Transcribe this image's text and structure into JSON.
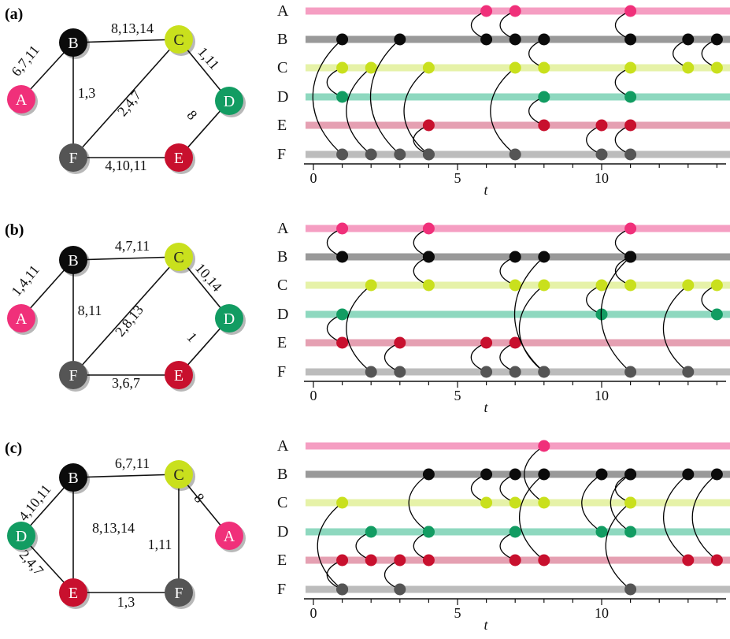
{
  "colors": {
    "A": "#f0307a",
    "B": "#0b0b0b",
    "C": "#c9e01d",
    "D": "#129c62",
    "E": "#c8102e",
    "F": "#555555"
  },
  "line_colors": {
    "A": "#f59ec2",
    "B": "#999999",
    "C": "#e6f2a8",
    "D": "#8ed8bf",
    "E": "#e5a0b2",
    "F": "#bcbcbc"
  },
  "row_labels": [
    "A",
    "B",
    "C",
    "D",
    "E",
    "F"
  ],
  "axis": {
    "title": "t",
    "ticks": [
      "0",
      "5",
      "10"
    ]
  },
  "panels": [
    {
      "label": "(a)",
      "graph": {
        "nodes": [
          "A",
          "B",
          "C",
          "D",
          "E",
          "F"
        ],
        "edges": [
          {
            "from": "A",
            "to": "B",
            "label": "6,7,11"
          },
          {
            "from": "B",
            "to": "C",
            "label": "8,13,14"
          },
          {
            "from": "B",
            "to": "F",
            "label": "1,3"
          },
          {
            "from": "C",
            "to": "F",
            "label": "2,4,7"
          },
          {
            "from": "C",
            "to": "D",
            "label": "1,11"
          },
          {
            "from": "D",
            "to": "E",
            "label": "8"
          },
          {
            "from": "F",
            "to": "E",
            "label": "4,10,11"
          }
        ]
      },
      "events": [
        {
          "t": 1,
          "u": "B",
          "v": "F"
        },
        {
          "t": 1,
          "u": "C",
          "v": "D"
        },
        {
          "t": 2,
          "u": "C",
          "v": "F"
        },
        {
          "t": 3,
          "u": "B",
          "v": "F"
        },
        {
          "t": 4,
          "u": "C",
          "v": "F"
        },
        {
          "t": 4,
          "u": "E",
          "v": "F"
        },
        {
          "t": 6,
          "u": "A",
          "v": "B"
        },
        {
          "t": 7,
          "u": "A",
          "v": "B"
        },
        {
          "t": 7,
          "u": "C",
          "v": "F"
        },
        {
          "t": 8,
          "u": "B",
          "v": "C"
        },
        {
          "t": 8,
          "u": "D",
          "v": "E"
        },
        {
          "t": 10,
          "u": "E",
          "v": "F"
        },
        {
          "t": 11,
          "u": "A",
          "v": "B"
        },
        {
          "t": 11,
          "u": "C",
          "v": "D"
        },
        {
          "t": 11,
          "u": "E",
          "v": "F"
        },
        {
          "t": 13,
          "u": "B",
          "v": "C"
        },
        {
          "t": 14,
          "u": "B",
          "v": "C"
        }
      ]
    },
    {
      "label": "(b)",
      "graph": {
        "nodes": [
          "A",
          "B",
          "C",
          "D",
          "E",
          "F"
        ],
        "edges": [
          {
            "from": "A",
            "to": "B",
            "label": "1,4,11"
          },
          {
            "from": "B",
            "to": "C",
            "label": "4,7,11"
          },
          {
            "from": "B",
            "to": "F",
            "label": "8,11"
          },
          {
            "from": "C",
            "to": "F",
            "label": "2,8,13"
          },
          {
            "from": "C",
            "to": "D",
            "label": "10,14"
          },
          {
            "from": "D",
            "to": "E",
            "label": "1"
          },
          {
            "from": "F",
            "to": "E",
            "label": "3,6,7"
          }
        ]
      },
      "events": [
        {
          "t": 1,
          "u": "A",
          "v": "B"
        },
        {
          "t": 1,
          "u": "D",
          "v": "E"
        },
        {
          "t": 2,
          "u": "C",
          "v": "F"
        },
        {
          "t": 3,
          "u": "E",
          "v": "F"
        },
        {
          "t": 4,
          "u": "A",
          "v": "B"
        },
        {
          "t": 4,
          "u": "B",
          "v": "C"
        },
        {
          "t": 6,
          "u": "E",
          "v": "F"
        },
        {
          "t": 7,
          "u": "B",
          "v": "C"
        },
        {
          "t": 7,
          "u": "E",
          "v": "F"
        },
        {
          "t": 8,
          "u": "B",
          "v": "F"
        },
        {
          "t": 8,
          "u": "C",
          "v": "F"
        },
        {
          "t": 10,
          "u": "C",
          "v": "D"
        },
        {
          "t": 11,
          "u": "A",
          "v": "B"
        },
        {
          "t": 11,
          "u": "B",
          "v": "C"
        },
        {
          "t": 11,
          "u": "B",
          "v": "F"
        },
        {
          "t": 13,
          "u": "C",
          "v": "F"
        },
        {
          "t": 14,
          "u": "C",
          "v": "D"
        }
      ]
    },
    {
      "label": "(c)",
      "graph": {
        "nodes": [
          "A",
          "B",
          "C",
          "D",
          "E",
          "F"
        ],
        "edges": [
          {
            "from": "D",
            "to": "B",
            "label": "4,10,11"
          },
          {
            "from": "B",
            "to": "C",
            "label": "6,7,11"
          },
          {
            "from": "B",
            "to": "E",
            "label": "8,13,14"
          },
          {
            "from": "D",
            "to": "E",
            "label": "2,4,7"
          },
          {
            "from": "C",
            "to": "A",
            "label": "8"
          },
          {
            "from": "C",
            "to": "F",
            "label": "1,11"
          },
          {
            "from": "E",
            "to": "F",
            "label": "1,3"
          }
        ]
      },
      "events": [
        {
          "t": 1,
          "u": "C",
          "v": "F"
        },
        {
          "t": 1,
          "u": "E",
          "v": "F"
        },
        {
          "t": 2,
          "u": "D",
          "v": "E"
        },
        {
          "t": 3,
          "u": "E",
          "v": "F"
        },
        {
          "t": 4,
          "u": "B",
          "v": "D"
        },
        {
          "t": 4,
          "u": "D",
          "v": "E"
        },
        {
          "t": 6,
          "u": "B",
          "v": "C"
        },
        {
          "t": 7,
          "u": "B",
          "v": "C"
        },
        {
          "t": 7,
          "u": "D",
          "v": "E"
        },
        {
          "t": 8,
          "u": "A",
          "v": "C"
        },
        {
          "t": 8,
          "u": "B",
          "v": "E"
        },
        {
          "t": 10,
          "u": "B",
          "v": "D"
        },
        {
          "t": 11,
          "u": "B",
          "v": "D"
        },
        {
          "t": 11,
          "u": "B",
          "v": "C"
        },
        {
          "t": 11,
          "u": "C",
          "v": "F"
        },
        {
          "t": 13,
          "u": "B",
          "v": "E"
        },
        {
          "t": 14,
          "u": "B",
          "v": "E"
        }
      ]
    }
  ]
}
